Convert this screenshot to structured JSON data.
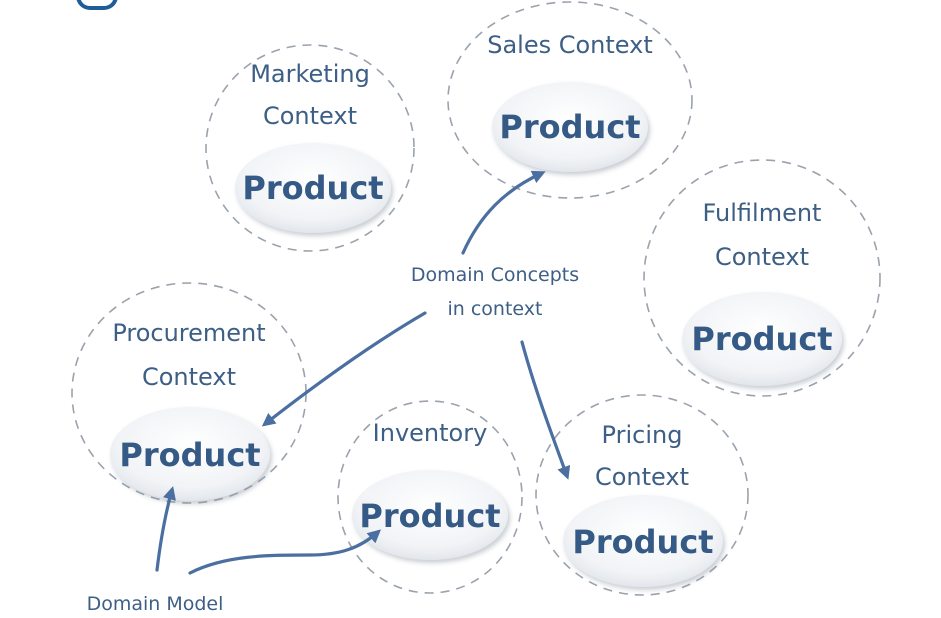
{
  "contexts": {
    "marketing": {
      "title_line1": "Marketing",
      "title_line2": "Context",
      "entity": "Product"
    },
    "sales": {
      "title_line1": "Sales Context",
      "entity": "Product"
    },
    "fulfilment": {
      "title_line1": "Fulfilment",
      "title_line2": "Context",
      "entity": "Product"
    },
    "procurement": {
      "title_line1": "Procurement",
      "title_line2": "Context",
      "entity": "Product"
    },
    "inventory": {
      "title_line1": "Inventory",
      "entity": "Product"
    },
    "pricing": {
      "title_line1": "Pricing",
      "title_line2": "Context",
      "entity": "Product"
    }
  },
  "annotations": {
    "domain_concepts_line1": "Domain Concepts",
    "domain_concepts_line2": "in context",
    "domain_model": "Domain Model"
  },
  "colors": {
    "text": "#3d5f86",
    "arrow": "#4a6fa0",
    "dashed_outline": "#9aa3ad",
    "top_accent": "#1f5d9a"
  }
}
